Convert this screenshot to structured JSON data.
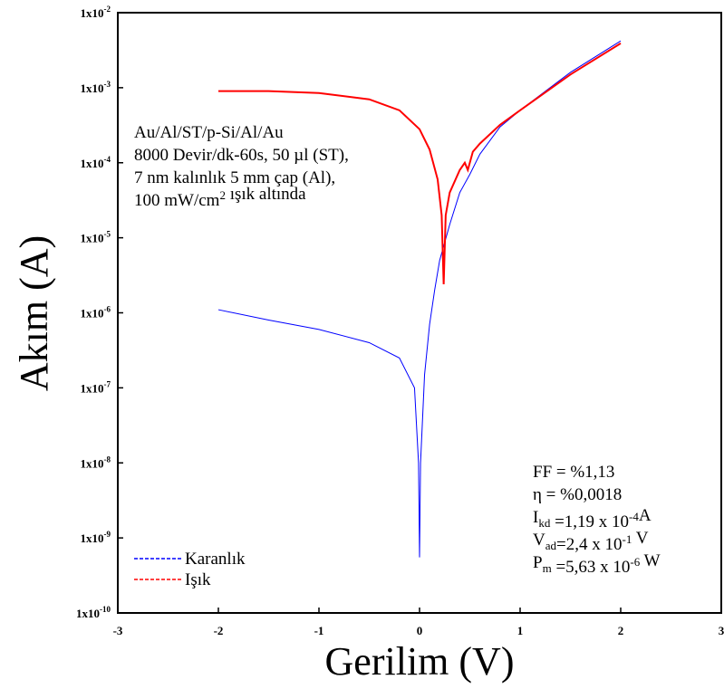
{
  "chart_data": {
    "type": "line",
    "x_label": "Gerilim (V)",
    "y_label": "Akım (A)",
    "yscale": "log",
    "xlim": [
      -3,
      3
    ],
    "ylim": [
      1e-10,
      0.01
    ],
    "xticks": [
      -3,
      -2,
      -1,
      0,
      1,
      2,
      3
    ],
    "yticks": [
      {
        "value": 1e-10,
        "label": "1x10-10"
      },
      {
        "value": 1e-09,
        "label": "1x10-9"
      },
      {
        "value": 1e-08,
        "label": "1x10-8"
      },
      {
        "value": 1e-07,
        "label": "1x10-7"
      },
      {
        "value": 1e-06,
        "label": "1x10-6"
      },
      {
        "value": 1e-05,
        "label": "1x10-5"
      },
      {
        "value": 0.0001,
        "label": "1x10-4"
      },
      {
        "value": 0.001,
        "label": "1x10-3"
      },
      {
        "value": 0.01,
        "label": "1x10-2"
      }
    ],
    "legend": "lower left",
    "series": [
      {
        "name": "Karanlık",
        "color": "#0000ff",
        "x": [
          -2,
          -1.5,
          -1,
          -0.5,
          -0.2,
          -0.05,
          -0.01,
          0,
          0.01,
          0.05,
          0.1,
          0.15,
          0.2,
          0.3,
          0.4,
          0.5,
          0.6,
          0.8,
          1,
          1.5,
          2
        ],
        "values": [
          1.1e-06,
          8e-07,
          6e-07,
          4e-07,
          2.5e-07,
          1e-07,
          1e-08,
          5.5e-10,
          1e-08,
          1.5e-07,
          7e-07,
          2e-06,
          5e-06,
          1.5e-05,
          4e-05,
          7e-05,
          0.00013,
          0.0003,
          0.0005,
          0.0016,
          0.0042
        ]
      },
      {
        "name": "Işık",
        "color": "#ff0000",
        "x": [
          -2,
          -1.5,
          -1,
          -0.5,
          -0.2,
          0,
          0.1,
          0.18,
          0.22,
          0.24,
          0.26,
          0.3,
          0.4,
          0.45,
          0.48,
          0.53,
          0.6,
          0.8,
          1,
          1.5,
          2
        ],
        "values": [
          0.0009,
          0.0009,
          0.00085,
          0.0007,
          0.0005,
          0.00028,
          0.00015,
          6e-05,
          2e-05,
          2.4e-06,
          2e-05,
          4e-05,
          8e-05,
          0.0001,
          8e-05,
          0.00014,
          0.00018,
          0.00032,
          0.0005,
          0.0015,
          0.0039
        ]
      }
    ],
    "annotations": [
      {
        "position": "upper left",
        "lines": [
          [
            {
              "text": "Au/Al/ST/p-Si/Al/Au"
            }
          ],
          [
            {
              "text": "8000 Devir/dk-60s, 50 µl (ST),"
            }
          ],
          [
            {
              "text": "7 nm kalınlık 5 mm çap (Al),"
            }
          ],
          [
            {
              "text": "100 mW/cm"
            },
            {
              "text": "2",
              "baseline": "super"
            },
            {
              "text": " ışık altında"
            }
          ]
        ]
      },
      {
        "position": "lower right",
        "lines": [
          [
            {
              "text": "FF = %1,13"
            }
          ],
          [
            {
              "text": "η   = %0,0018"
            }
          ],
          [
            {
              "text": "I"
            },
            {
              "text": "kd",
              "baseline": "sub"
            },
            {
              "text": "  =1,19 x 10"
            },
            {
              "text": "-4",
              "baseline": "super"
            },
            {
              "text": "A"
            }
          ],
          [
            {
              "text": "V"
            },
            {
              "text": "ad",
              "baseline": "sub"
            },
            {
              "text": "=2,4 x 10"
            },
            {
              "text": "-1",
              "baseline": "super"
            },
            {
              "text": " V"
            }
          ],
          [
            {
              "text": "P"
            },
            {
              "text": "m",
              "baseline": "sub"
            },
            {
              "text": " =5,63 x 10"
            },
            {
              "text": "-6",
              "baseline": "super"
            },
            {
              "text": " W"
            }
          ]
        ]
      }
    ]
  }
}
